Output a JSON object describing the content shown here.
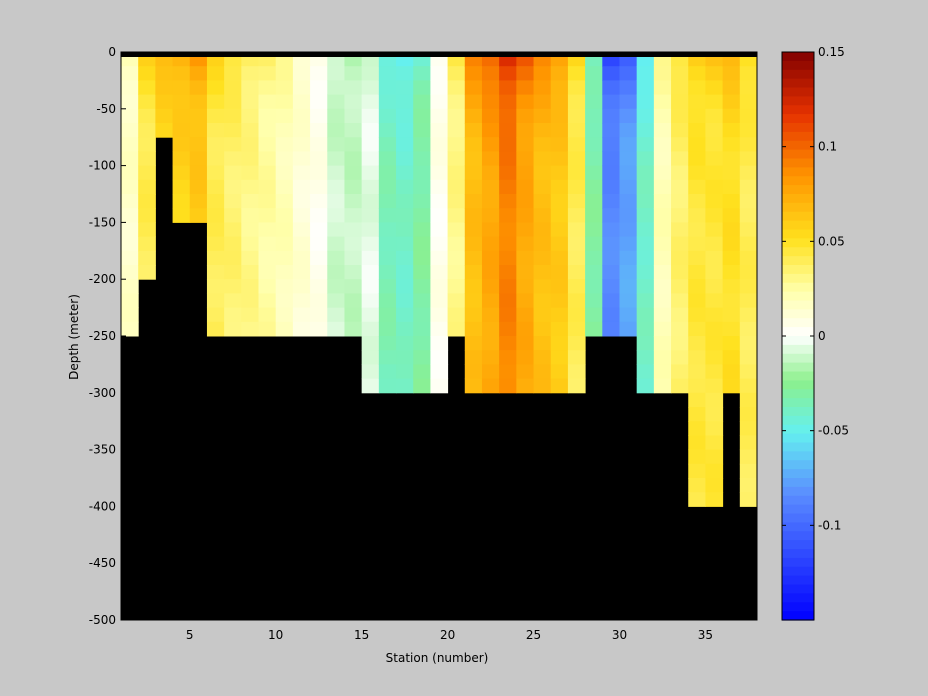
{
  "chart_data": {
    "type": "heatmap",
    "title": "",
    "xlabel": "Station (number)",
    "ylabel": "Depth (meter)",
    "xlim": [
      1,
      38
    ],
    "ylim": [
      -500,
      0
    ],
    "x_ticks": [
      5,
      10,
      15,
      20,
      25,
      30,
      35
    ],
    "y_ticks": [
      0,
      -50,
      -100,
      -150,
      -200,
      -250,
      -300,
      -350,
      -400,
      -450,
      -500
    ],
    "colorbar": {
      "range": [
        -0.15,
        0.15
      ],
      "ticks": [
        0.15,
        0.1,
        0.05,
        0,
        -0.05,
        -0.1
      ],
      "tick_labels": [
        "0.15",
        "0.1",
        "0.05",
        "0",
        "-0.05",
        "-0.1"
      ],
      "colormap": "jet-with-white-center"
    },
    "mask_color": "#000000",
    "stations": [
      1,
      2,
      3,
      4,
      5,
      6,
      7,
      8,
      9,
      10,
      11,
      12,
      13,
      14,
      15,
      16,
      17,
      18,
      19,
      20,
      21,
      22,
      23,
      24,
      25,
      26,
      27,
      28,
      29,
      30,
      31,
      32,
      33,
      34,
      35,
      36,
      37
    ],
    "station_bottom_depth": [
      -250,
      -200,
      -75,
      -150,
      -150,
      -250,
      -250,
      -250,
      -250,
      -250,
      -250,
      -250,
      -250,
      -250,
      -300,
      -300,
      -300,
      -300,
      -300,
      -250,
      -300,
      -300,
      -300,
      -300,
      -300,
      -300,
      -300,
      -250,
      -250,
      -250,
      -300,
      -300,
      -300,
      -400,
      -400,
      -300,
      -400
    ],
    "station_mean_value": [
      0.015,
      0.04,
      0.05,
      0.055,
      0.06,
      0.04,
      0.035,
      0.03,
      0.025,
      0.02,
      0.012,
      0.005,
      -0.01,
      -0.012,
      -0.005,
      -0.035,
      -0.04,
      -0.03,
      0.005,
      0.03,
      0.065,
      0.075,
      0.09,
      0.075,
      0.065,
      0.06,
      0.04,
      -0.03,
      -0.085,
      -0.075,
      -0.04,
      0.02,
      0.035,
      0.045,
      0.045,
      0.05,
      0.04
    ]
  }
}
